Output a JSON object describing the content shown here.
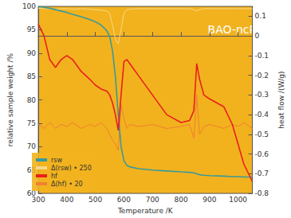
{
  "chart_data": {
    "type": "line",
    "annotation": "BAO-ncP",
    "x_label": "Temperature /K",
    "y_label": "relative sample weight /%",
    "y2_label": "heat flow /(W/g)",
    "x": [
      300,
      320,
      340,
      360,
      380,
      400,
      420,
      450,
      480,
      500,
      520,
      540,
      550,
      560,
      570,
      580,
      590,
      600,
      610,
      620,
      650,
      700,
      750,
      800,
      830,
      845,
      855,
      865,
      880,
      900,
      950,
      980,
      1000,
      1020,
      1050
    ],
    "series": [
      {
        "name": "rsw",
        "color": "#3a9a9a",
        "values": [
          100,
          99.8,
          99.6,
          99.3,
          99,
          98.7,
          98.3,
          97.8,
          97.2,
          96.7,
          96,
          94.8,
          93.5,
          90.5,
          85,
          77,
          70,
          67,
          66,
          65.7,
          65.3,
          65,
          64.8,
          64.6,
          64.5,
          64.4,
          64.2,
          64.0,
          63.9,
          63.8,
          63.7,
          63.6,
          63.6,
          63.5,
          63.5
        ]
      },
      {
        "name": "Δ(rsw) • 250",
        "color": "#f7d88a",
        "values": [
          99.6,
          99.5,
          99.5,
          99.4,
          99.5,
          99.5,
          99.4,
          99.5,
          99.4,
          99.3,
          99.2,
          99,
          98.5,
          96,
          93,
          92,
          95,
          98.5,
          99.3,
          99.4,
          99.5,
          99.5,
          99.5,
          99.5,
          99.5,
          99.3,
          99,
          99.3,
          99.5,
          99.5,
          99.5,
          99.5,
          99.5,
          99.5,
          99.5
        ]
      },
      {
        "name": "hf",
        "color": "#e8201a",
        "axis": "y2",
        "values": [
          0.06,
          0.0,
          -0.12,
          -0.16,
          -0.12,
          -0.1,
          -0.12,
          -0.18,
          -0.22,
          -0.25,
          -0.27,
          -0.28,
          -0.3,
          -0.34,
          -0.4,
          -0.48,
          -0.3,
          -0.13,
          -0.12,
          -0.14,
          -0.2,
          -0.3,
          -0.4,
          -0.44,
          -0.43,
          -0.38,
          -0.14,
          -0.22,
          -0.3,
          -0.32,
          -0.36,
          -0.45,
          -0.55,
          -0.65,
          -0.74
        ]
      },
      {
        "name": "Δ(hf) • 20",
        "color": "#f08030",
        "axis": "y2",
        "values": [
          -0.45,
          -0.47,
          -0.44,
          -0.47,
          -0.45,
          -0.46,
          -0.44,
          -0.47,
          -0.45,
          -0.46,
          -0.44,
          -0.47,
          -0.5,
          -0.53,
          -0.55,
          -0.58,
          -0.35,
          -0.42,
          -0.47,
          -0.45,
          -0.46,
          -0.45,
          -0.47,
          -0.46,
          -0.45,
          -0.52,
          -0.3,
          -0.5,
          -0.46,
          -0.45,
          -0.47,
          -0.45,
          -0.46,
          -0.44,
          -0.47
        ]
      }
    ],
    "xlim": [
      300,
      1050
    ],
    "xticks": [
      300,
      400,
      500,
      600,
      700,
      800,
      900,
      1000
    ],
    "ylim": [
      60,
      100
    ],
    "yticks": [
      60,
      65,
      70,
      75,
      80,
      85,
      90,
      95,
      100
    ],
    "y2lim": [
      -0.8,
      0.15
    ],
    "y2ticks": [
      -0.8,
      -0.7,
      -0.6,
      -0.5,
      -0.4,
      -0.3,
      -0.2,
      -0.1,
      0,
      0.1
    ],
    "grid": false,
    "legend": "lower left"
  }
}
